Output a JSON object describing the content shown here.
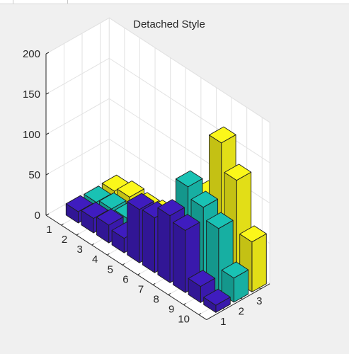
{
  "chart_data": {
    "type": "bar3",
    "title": "Detached Style",
    "style": "detached",
    "x_ticks": [
      "1",
      "2",
      "3"
    ],
    "y_ticks": [
      "1",
      "2",
      "3",
      "4",
      "5",
      "6",
      "7",
      "8",
      "9",
      "10"
    ],
    "z_ticks": [
      "0",
      "50",
      "100",
      "150",
      "200"
    ],
    "zlim": [
      0,
      200
    ],
    "grid": true,
    "series": [
      {
        "color": "#3f1cbf",
        "values": [
          14,
          18,
          22,
          18,
          66,
          68,
          83,
          77,
          20,
          9
        ]
      },
      {
        "color": "#19c2b4",
        "values": [
          13,
          17,
          18,
          15,
          23,
          21,
          106,
          93,
          79,
          30
        ]
      },
      {
        "color": "#fbf71a",
        "values": [
          14,
          19,
          17,
          20,
          20,
          22,
          81,
          160,
          126,
          62
        ]
      }
    ]
  }
}
